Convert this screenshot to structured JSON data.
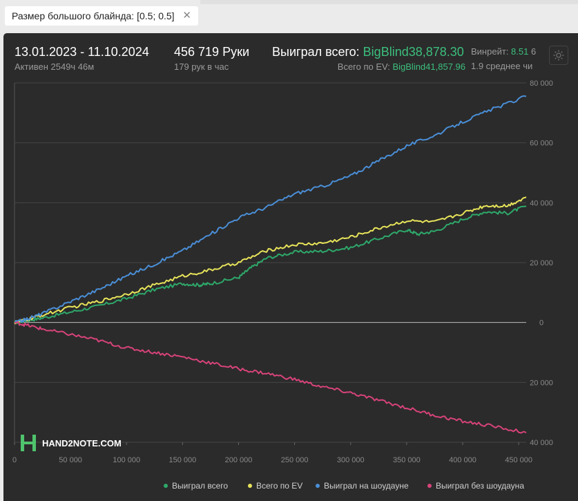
{
  "filter": {
    "label": "Размер большого блайнда: [0.5; 0.5]",
    "close_glyph": "✕"
  },
  "header": {
    "date_range": "13.01.2023 - 11.10.2024",
    "active": "Активен 2549ч 46м",
    "hands": "456 719 Руки",
    "hands_per_hour": "179 рук в час",
    "won_total_label": "Выиграл всего:",
    "won_total_value": "BigBlind38,878.30",
    "ev_total_label": "Всего по EV:",
    "ev_total_value": "BigBlind41,857.96",
    "winrate_label": "Винрейт:",
    "winrate_value": "8.51",
    "winrate_tail": "6",
    "avg_line": "1.9 среднее чи"
  },
  "logo": {
    "text": "HAND2NOTE.COM"
  },
  "colors": {
    "green": "#2ea86a",
    "yellow": "#e8e45a",
    "blue": "#4a8fd8",
    "pink": "#d8437a"
  },
  "chart_data": {
    "type": "line",
    "xlabel": "",
    "ylabel": "",
    "xlim": [
      0,
      456719
    ],
    "ylim": [
      -40000,
      80000
    ],
    "x_ticks": [
      0,
      50000,
      100000,
      150000,
      200000,
      250000,
      300000,
      350000,
      400000,
      450000
    ],
    "x_tick_labels": [
      "0",
      "50 000",
      "100 000",
      "150 000",
      "200 000",
      "250 000",
      "300 000",
      "350 000",
      "400 000",
      "450 000"
    ],
    "y_ticks": [
      80000,
      60000,
      40000,
      20000,
      0,
      -20000,
      -40000
    ],
    "y_tick_labels": [
      "80 000",
      "60 000",
      "40 000",
      "20 000",
      "0",
      "20 000",
      "40 000"
    ],
    "grid": true,
    "legend": "bottom",
    "series": [
      {
        "name": "Выиграл всего",
        "color": "#2ea86a",
        "x": [
          0,
          10000,
          25000,
          50000,
          75000,
          100000,
          125000,
          150000,
          165000,
          175000,
          200000,
          210000,
          225000,
          250000,
          275000,
          300000,
          325000,
          350000,
          360000,
          375000,
          400000,
          420000,
          440000,
          456719
        ],
        "y": [
          0,
          600,
          1500,
          3500,
          5500,
          8000,
          11000,
          13000,
          12500,
          13000,
          15000,
          18000,
          21500,
          23500,
          23800,
          25000,
          28000,
          31000,
          29500,
          30500,
          34500,
          37000,
          36500,
          38878
        ]
      },
      {
        "name": "Всего по EV",
        "color": "#e8e45a",
        "x": [
          0,
          10000,
          25000,
          50000,
          75000,
          100000,
          125000,
          150000,
          175000,
          200000,
          225000,
          250000,
          275000,
          300000,
          325000,
          350000,
          375000,
          400000,
          420000,
          440000,
          456719
        ],
        "y": [
          0,
          800,
          2500,
          5000,
          7000,
          9500,
          12500,
          15500,
          17500,
          20000,
          24000,
          26000,
          26500,
          28500,
          31500,
          34000,
          33500,
          36500,
          39000,
          39000,
          41858
        ]
      },
      {
        "name": "Выиграл на шоудауне",
        "color": "#4a8fd8",
        "x": [
          0,
          10000,
          25000,
          50000,
          75000,
          100000,
          125000,
          150000,
          175000,
          200000,
          225000,
          250000,
          275000,
          300000,
          325000,
          350000,
          375000,
          400000,
          425000,
          456719
        ],
        "y": [
          0,
          1000,
          3000,
          7000,
          11000,
          15500,
          19500,
          24000,
          29500,
          35000,
          38500,
          43000,
          45500,
          49000,
          54000,
          59000,
          62500,
          67000,
          71000,
          75500
        ]
      },
      {
        "name": "Выиграл без шоудауна",
        "color": "#d8437a",
        "x": [
          0,
          10000,
          25000,
          50000,
          75000,
          100000,
          125000,
          150000,
          175000,
          200000,
          225000,
          250000,
          275000,
          300000,
          325000,
          350000,
          375000,
          400000,
          425000,
          456719
        ],
        "y": [
          0,
          -800,
          -2200,
          -4000,
          -6000,
          -8500,
          -10000,
          -11500,
          -13500,
          -15500,
          -17000,
          -19000,
          -21500,
          -23500,
          -26000,
          -28500,
          -31000,
          -33000,
          -34500,
          -36800
        ]
      }
    ]
  }
}
